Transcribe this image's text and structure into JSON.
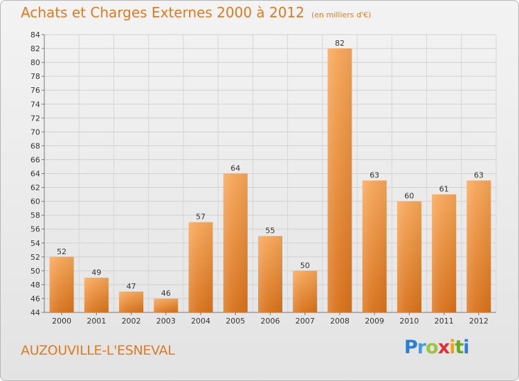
{
  "title": "Achats et Charges Externes 2000 à 2012",
  "subtitle": "(en milliers d'€)",
  "place": "AUZOUVILLE-L'ESNEVAL",
  "logo": {
    "P": "P",
    "r": "r",
    "o": "o",
    "x": "x",
    "i": "i",
    "t": "t",
    "i2": "i"
  },
  "colors": {
    "accent": "#e07a1f",
    "bar_top": "#f5a455",
    "bar_bottom": "#d9731c"
  },
  "chart_data": {
    "type": "bar",
    "categories": [
      "2000",
      "2001",
      "2002",
      "2003",
      "2004",
      "2005",
      "2006",
      "2007",
      "2008",
      "2009",
      "2010",
      "2011",
      "2012"
    ],
    "values": [
      52,
      49,
      47,
      46,
      57,
      64,
      55,
      50,
      82,
      63,
      60,
      61,
      63
    ],
    "ylim": [
      44,
      84
    ],
    "yticks": [
      44,
      46,
      48,
      50,
      52,
      54,
      56,
      58,
      60,
      62,
      64,
      66,
      68,
      70,
      72,
      74,
      76,
      78,
      80,
      82,
      84
    ],
    "grid": true,
    "xlabel": "",
    "ylabel": ""
  }
}
